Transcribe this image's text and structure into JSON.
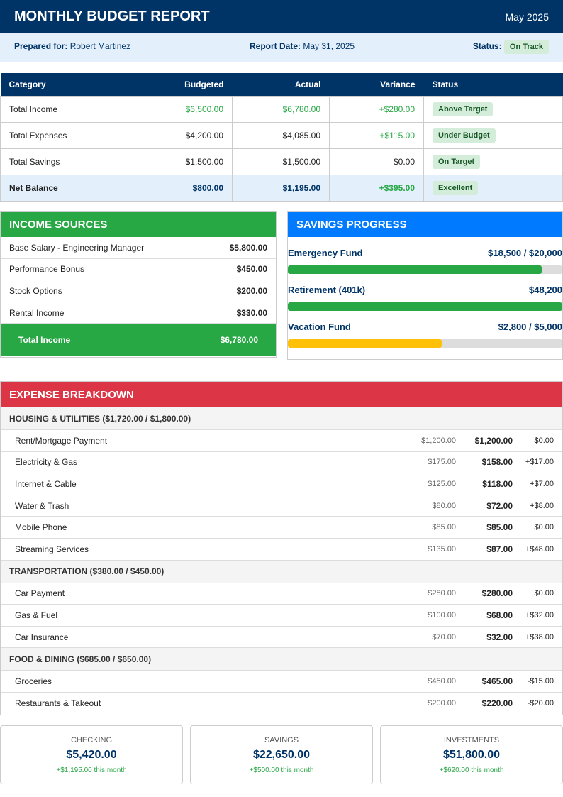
{
  "header": {
    "title": "MONTHLY BUDGET REPORT",
    "period": "May 2025"
  },
  "info": {
    "prepared_label": "Prepared for:",
    "prepared_value": "Robert Martinez",
    "date_label": "Report Date:",
    "date_value": "May 31, 2025",
    "status_label": "Status:",
    "status_value": "On Track"
  },
  "summary": {
    "headers": [
      "Category",
      "Budgeted",
      "Actual",
      "Variance",
      "Status"
    ],
    "rows": [
      {
        "category": "Total Income",
        "budgeted": "$6,500.00",
        "actual": "$6,780.00",
        "variance": "+$280.00",
        "status": "Above Target"
      },
      {
        "category": "Total Expenses",
        "budgeted": "$4,200.00",
        "actual": "$4,085.00",
        "variance": "+$115.00",
        "status": "Under Budget"
      },
      {
        "category": "Total Savings",
        "budgeted": "$1,500.00",
        "actual": "$1,500.00",
        "variance": "$0.00",
        "status": "On Target"
      },
      {
        "category": "Net Balance",
        "budgeted": "$800.00",
        "actual": "$1,195.00",
        "variance": "+$395.00",
        "status": "Excellent"
      }
    ]
  },
  "income": {
    "title": "INCOME SOURCES",
    "items": [
      {
        "name": "Base Salary - Engineering Manager",
        "amount": "$5,800.00"
      },
      {
        "name": "Performance Bonus",
        "amount": "$450.00"
      },
      {
        "name": "Stock Options",
        "amount": "$200.00"
      },
      {
        "name": "Rental Income",
        "amount": "$330.00"
      }
    ],
    "total_label": "Total Income",
    "total": "$6,780.00"
  },
  "savings": {
    "title": "SAVINGS PROGRESS",
    "goals": [
      {
        "name": "Emergency Fund",
        "value": "$18,500 / $20,000",
        "percent": 92.5,
        "color": "#28a745"
      },
      {
        "name": "Retirement (401k)",
        "value": "$48,200",
        "percent": 100,
        "color": "#28a745"
      },
      {
        "name": "Vacation Fund",
        "value": "$2,800 / $5,000",
        "percent": 56,
        "color": "#ffc107"
      }
    ]
  },
  "expenses": {
    "title": "EXPENSE BREAKDOWN",
    "categories": [
      {
        "label": "HOUSING & UTILITIES ($1,720.00 / $1,800.00)",
        "items": [
          {
            "name": "Rent/Mortgage Payment",
            "budget": "$1,200.00",
            "actual": "$1,200.00",
            "variance": "$0.00"
          },
          {
            "name": "Electricity & Gas",
            "budget": "$175.00",
            "actual": "$158.00",
            "variance": "+$17.00"
          },
          {
            "name": "Internet & Cable",
            "budget": "$125.00",
            "actual": "$118.00",
            "variance": "+$7.00"
          },
          {
            "name": "Water & Trash",
            "budget": "$80.00",
            "actual": "$72.00",
            "variance": "+$8.00"
          },
          {
            "name": "Mobile Phone",
            "budget": "$85.00",
            "actual": "$85.00",
            "variance": "$0.00"
          },
          {
            "name": "Streaming Services",
            "budget": "$135.00",
            "actual": "$87.00",
            "variance": "+$48.00"
          }
        ]
      },
      {
        "label": "TRANSPORTATION ($380.00 / $450.00)",
        "items": [
          {
            "name": "Car Payment",
            "budget": "$280.00",
            "actual": "$280.00",
            "variance": "$0.00"
          },
          {
            "name": "Gas & Fuel",
            "budget": "$100.00",
            "actual": "$68.00",
            "variance": "+$32.00"
          },
          {
            "name": "Car Insurance",
            "budget": "$70.00",
            "actual": "$32.00",
            "variance": "+$38.00"
          }
        ]
      },
      {
        "label": "FOOD & DINING ($685.00 / $650.00)",
        "items": [
          {
            "name": "Groceries",
            "budget": "$450.00",
            "actual": "$465.00",
            "variance": "-$15.00"
          },
          {
            "name": "Restaurants & Takeout",
            "budget": "$200.00",
            "actual": "$220.00",
            "variance": "-$20.00"
          }
        ]
      }
    ]
  },
  "accounts": [
    {
      "label": "CHECKING",
      "amount": "$5,420.00",
      "change": "+$1,195.00 this month"
    },
    {
      "label": "SAVINGS",
      "amount": "$22,650.00",
      "change": "+$500.00 this month"
    },
    {
      "label": "INVESTMENTS",
      "amount": "$51,800.00",
      "change": "+$620.00 this month"
    }
  ]
}
